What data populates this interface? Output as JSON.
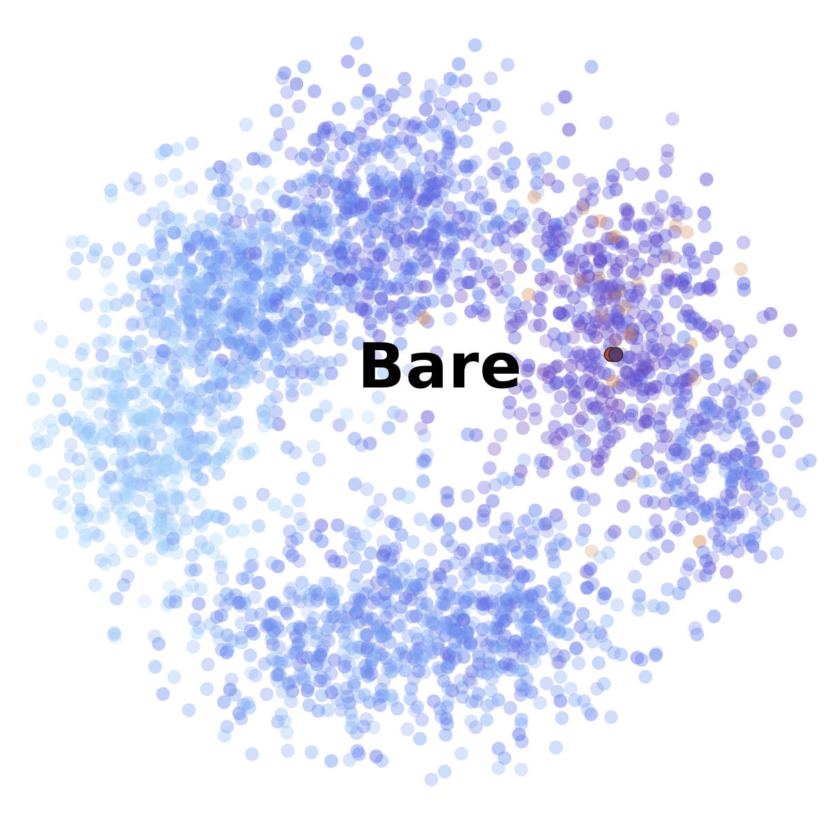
{
  "chart_data": {
    "type": "scatter",
    "title": "",
    "xlabel": "",
    "ylabel": "",
    "grid": false,
    "axes_visible": false,
    "legend": "none",
    "label": "Bare",
    "colors": {
      "light": "#a9d6fb",
      "mid_blue": "#6b8ff0",
      "indigo": "#5b52d6",
      "purple": "#7a48b8",
      "orange": "#d4905a",
      "highlight": "#c8413f"
    },
    "clusters": [
      {
        "name": "",
        "x": 0.28,
        "y": 0.36,
        "sx": 0.09,
        "sy": 0.085,
        "n": 620,
        "tone": 0.3
      },
      {
        "name": "",
        "x": 0.48,
        "y": 0.26,
        "sx": 0.1,
        "sy": 0.11,
        "n": 560,
        "tone": 0.55
      },
      {
        "name": "",
        "x": 0.74,
        "y": 0.4,
        "sx": 0.09,
        "sy": 0.12,
        "n": 520,
        "tone": 0.82
      },
      {
        "name": "",
        "x": 0.57,
        "y": 0.76,
        "sx": 0.12,
        "sy": 0.09,
        "n": 520,
        "tone": 0.45
      },
      {
        "name": "",
        "x": 0.17,
        "y": 0.55,
        "sx": 0.08,
        "sy": 0.1,
        "n": 420,
        "tone": 0.15
      },
      {
        "name": "",
        "x": 0.37,
        "y": 0.78,
        "sx": 0.1,
        "sy": 0.08,
        "n": 300,
        "tone": 0.4
      },
      {
        "name": "",
        "x": 0.86,
        "y": 0.58,
        "sx": 0.06,
        "sy": 0.08,
        "n": 200,
        "tone": 0.6
      }
    ],
    "highlight_points": [
      {
        "x": 0.728,
        "y": 0.435,
        "color": "#c8413f"
      },
      {
        "x": 0.733,
        "y": 0.435,
        "color": "#5a3d6a"
      }
    ]
  }
}
